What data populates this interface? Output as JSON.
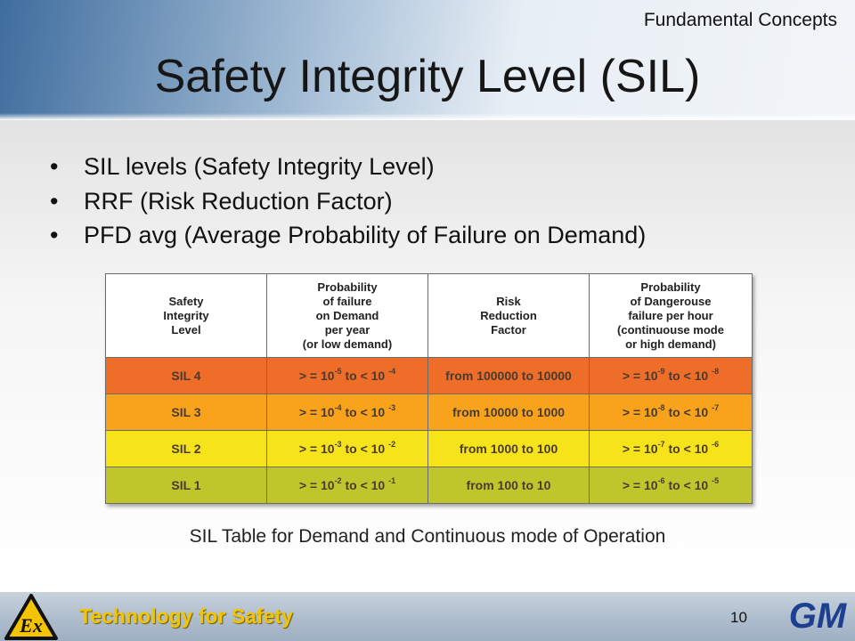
{
  "slide": {
    "section_label": "Fundamental Concepts",
    "title": "Safety Integrity Level (SIL)",
    "bullets": [
      "SIL levels (Safety Integrity Level)",
      "RRF (Risk Reduction Factor)",
      "PFD avg (Average Probability of Failure on  Demand)"
    ],
    "bullet_symbol": "•",
    "caption": "SIL Table for Demand and Continuous mode of Operation",
    "footer": {
      "slogan": "Technology for Safety",
      "page_number": "10",
      "left_logo": "Ex",
      "right_logo": "GM"
    }
  },
  "table": {
    "headers": [
      [
        "Safety",
        "Integrity",
        "Level"
      ],
      [
        "Probability",
        "of failure",
        "on Demand",
        "per year",
        "(or low demand)"
      ],
      [
        "Risk",
        "Reduction",
        "Factor"
      ],
      [
        "Probability",
        "of Dangerouse",
        "failure per hour",
        "(continuouse mode",
        "or high demand)"
      ]
    ],
    "rows": [
      {
        "level": "SIL 4",
        "color": "#ee6d29",
        "pfd": {
          "prefix": "> = 10",
          "exp1": "-5",
          "mid": " to < 10 ",
          "exp2": "-4"
        },
        "rrf": "from 100000 to 10000",
        "pfh": {
          "prefix": "> = 10",
          "exp1": "-9",
          "mid": " to < 10 ",
          "exp2": "-8"
        }
      },
      {
        "level": "SIL 3",
        "color": "#f8a31b",
        "pfd": {
          "prefix": "> = 10",
          "exp1": "-4",
          "mid": " to < 10 ",
          "exp2": "-3"
        },
        "rrf": "from 10000 to 1000",
        "pfh": {
          "prefix": "> = 10",
          "exp1": "-8",
          "mid": " to < 10 ",
          "exp2": "-7"
        }
      },
      {
        "level": "SIL 2",
        "color": "#f6e31a",
        "pfd": {
          "prefix": "> = 10",
          "exp1": "-3",
          "mid": " to < 10 ",
          "exp2": "-2"
        },
        "rrf": "from 1000 to 100",
        "pfh": {
          "prefix": "> = 10",
          "exp1": "-7",
          "mid": " to < 10 ",
          "exp2": "-6"
        }
      },
      {
        "level": "SIL 1",
        "color": "#bec62c",
        "pfd": {
          "prefix": "> = 10",
          "exp1": "-2",
          "mid": " to < 10 ",
          "exp2": "-1"
        },
        "rrf": "from 100 to 10",
        "pfh": {
          "prefix": "> = 10",
          "exp1": "-6",
          "mid": " to < 10 ",
          "exp2": "-5"
        }
      }
    ]
  },
  "colors": {
    "slogan": "#f3c500",
    "ex_logo_fill": "#f5c400",
    "gm_logo": "#1d3f8f"
  }
}
